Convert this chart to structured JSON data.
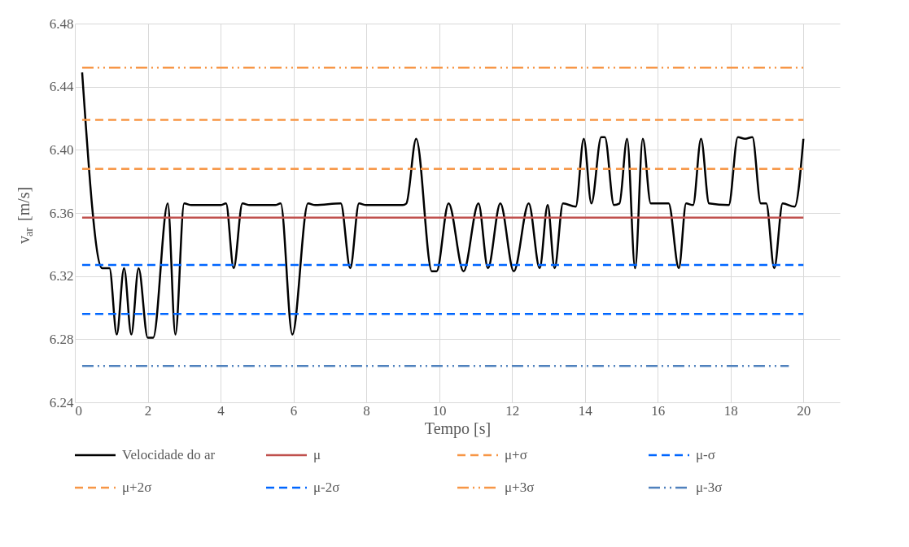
{
  "chart_data": {
    "type": "line",
    "xlabel": "Tempo [s]",
    "ylabel": "v$_{ar}$ [m/s]",
    "xlim": [
      0,
      21
    ],
    "xticks": [
      0,
      2,
      4,
      6,
      8,
      10,
      12,
      14,
      16,
      18,
      20
    ],
    "ylim": [
      6.24,
      6.48
    ],
    "yticks": [
      {
        "value": 6.24,
        "label": "6.24"
      },
      {
        "value": 6.28,
        "label": "6.28"
      },
      {
        "value": 6.32,
        "label": "6.32"
      },
      {
        "value": 6.36,
        "label": "6.36"
      },
      {
        "value": 6.4,
        "label": "6.40"
      },
      {
        "value": 6.44,
        "label": "6.44"
      },
      {
        "value": 6.48,
        "label": "6.48"
      }
    ],
    "grid": true,
    "legend": "bottom",
    "marker": "none",
    "series": [
      {
        "name": "Velocidade do ar",
        "color": "#000000",
        "line_style": "solid",
        "x": [
          0.2,
          0.75,
          0.95,
          1.15,
          1.35,
          1.55,
          1.75,
          2.0,
          2.15,
          2.55,
          2.76,
          3.0,
          3.2,
          4.0,
          4.15,
          4.36,
          4.6,
          4.8,
          5.5,
          5.65,
          5.97,
          6.4,
          6.6,
          7.3,
          7.56,
          7.8,
          8.0,
          9.0,
          9.1,
          9.37,
          9.8,
          9.93,
          10.26,
          10.67,
          11.08,
          11.34,
          11.68,
          12.05,
          12.46,
          12.76,
          12.98,
          13.17,
          13.4,
          13.75,
          13.97,
          14.18,
          14.45,
          14.55,
          14.8,
          14.95,
          15.16,
          15.38,
          15.59,
          15.81,
          16.3,
          16.58,
          16.78,
          16.97,
          17.19,
          17.41,
          17.95,
          18.2,
          18.4,
          18.6,
          18.83,
          18.98,
          19.2,
          19.43,
          19.76,
          20.0
        ],
        "values": [
          6.449,
          6.325,
          6.325,
          6.283,
          6.325,
          6.283,
          6.325,
          6.281,
          6.281,
          6.366,
          6.283,
          6.366,
          6.365,
          6.365,
          6.366,
          6.325,
          6.366,
          6.365,
          6.365,
          6.366,
          6.283,
          6.366,
          6.365,
          6.366,
          6.325,
          6.366,
          6.365,
          6.365,
          6.366,
          6.407,
          6.323,
          6.323,
          6.366,
          6.323,
          6.366,
          6.325,
          6.366,
          6.323,
          6.366,
          6.325,
          6.365,
          6.325,
          6.366,
          6.364,
          6.407,
          6.366,
          6.408,
          6.408,
          6.365,
          6.366,
          6.407,
          6.325,
          6.407,
          6.366,
          6.366,
          6.325,
          6.366,
          6.365,
          6.407,
          6.366,
          6.365,
          6.408,
          6.407,
          6.408,
          6.366,
          6.366,
          6.325,
          6.366,
          6.364,
          6.407
        ]
      },
      {
        "name": "μ",
        "color": "#c0504d",
        "line_style": "solid",
        "x": [
          0.2,
          20
        ],
        "values": [
          6.357,
          6.357
        ]
      },
      {
        "name": "μ+σ",
        "color": "#f79646",
        "line_style": "dashed",
        "x": [
          0.2,
          20
        ],
        "values": [
          6.388,
          6.388
        ]
      },
      {
        "name": "μ-σ",
        "color": "#0066ff",
        "line_style": "dashed",
        "x": [
          0.2,
          20
        ],
        "values": [
          6.327,
          6.327
        ]
      },
      {
        "name": "μ+2σ",
        "color": "#f79646",
        "line_style": "dashed",
        "x": [
          0.2,
          20
        ],
        "values": [
          6.419,
          6.419
        ]
      },
      {
        "name": "μ-2σ",
        "color": "#0066ff",
        "line_style": "dashed",
        "x": [
          0.2,
          20
        ],
        "values": [
          6.296,
          6.296
        ]
      },
      {
        "name": "μ+3σ",
        "color": "#f79646",
        "line_style": "dotted",
        "x": [
          0.2,
          20
        ],
        "values": [
          6.452,
          6.452
        ]
      },
      {
        "name": "μ-3σ",
        "color": "#4f81bd",
        "line_style": "dotted",
        "x": [
          0.2,
          19.6
        ],
        "values": [
          6.263,
          6.263
        ]
      }
    ]
  }
}
